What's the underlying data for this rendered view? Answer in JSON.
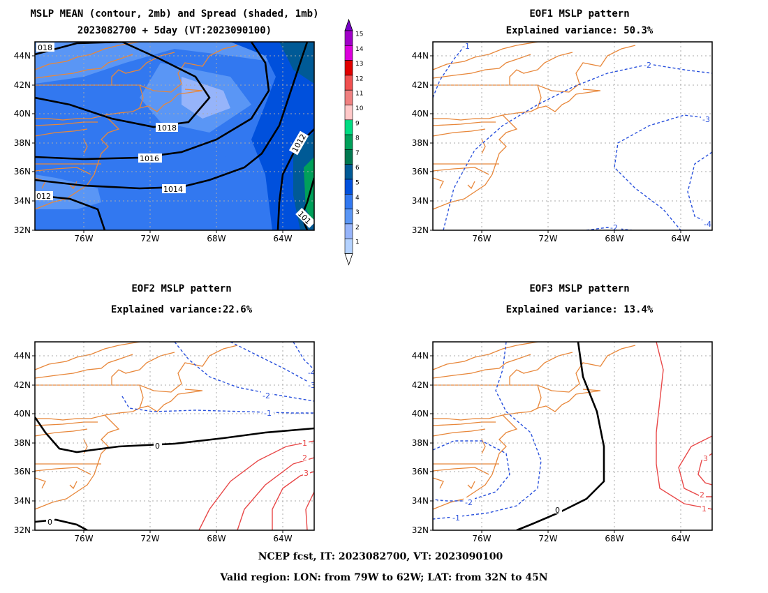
{
  "panels": [
    {
      "id": "spread",
      "title_line1": "MSLP MEAN (contour, 2mb) and Spread (shaded, 1mb)",
      "title_line2": "2023082700 + 5day (VT:2023090100)",
      "contour_labels": [
        "018",
        "1018",
        "1016",
        "1014",
        "012",
        "1012",
        "101"
      ]
    },
    {
      "id": "eof1",
      "title_line1": "EOF1 MSLP pattern",
      "title_line2": "Explained variance: 50.3%",
      "contour_labels": [
        "-1",
        "-2",
        "-3",
        "-2",
        "-4"
      ]
    },
    {
      "id": "eof2",
      "title_line1": "EOF2 MSLP pattern",
      "title_line2": "Explained variance:22.6%",
      "contour_labels": [
        "-4",
        "-3",
        "-2",
        "-1",
        "0",
        "1",
        "2",
        "3",
        "0"
      ]
    },
    {
      "id": "eof3",
      "title_line1": "EOF3 MSLP pattern",
      "title_line2": "Explained variance: 13.4%",
      "contour_labels": [
        "-2",
        "-1",
        "0",
        "1",
        "2",
        "3"
      ]
    }
  ],
  "axes": {
    "lat_labels": [
      "44N",
      "42N",
      "40N",
      "38N",
      "36N",
      "34N",
      "32N"
    ],
    "lon_labels": [
      "76W",
      "72W",
      "68W",
      "64W"
    ]
  },
  "colorbar": {
    "labels": [
      "15",
      "14",
      "13",
      "12",
      "11",
      "10",
      "9",
      "8",
      "7",
      "6",
      "5",
      "4",
      "3",
      "2",
      "1"
    ],
    "colors": [
      "#a000c8",
      "#dc00dc",
      "#e10000",
      "#f05050",
      "#f08080",
      "#ffc8c8",
      "#00dc82",
      "#00a05a",
      "#007850",
      "#005a96",
      "#0050dc",
      "#3278f0",
      "#5a96f5",
      "#96b4fa",
      "#b4d2ff"
    ]
  },
  "footer": {
    "line1": "NCEP fcst, IT: 2023082700, VT: 2023090100",
    "line2": "Valid region: LON: from 79W to 62W; LAT: from 32N to 45N"
  }
}
